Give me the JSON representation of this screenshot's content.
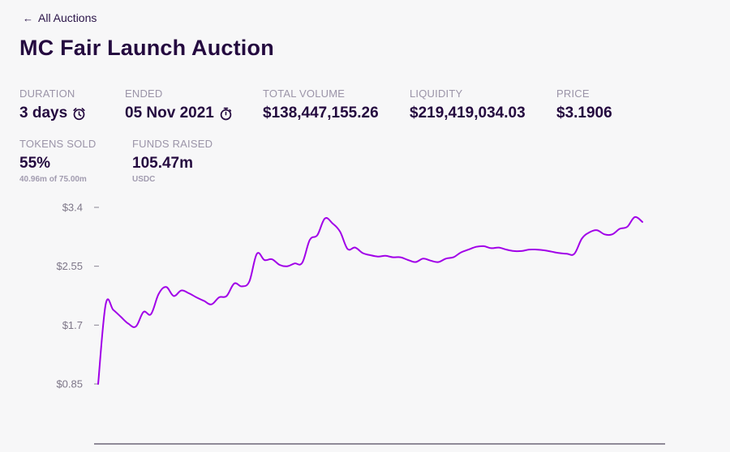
{
  "nav": {
    "back_label": "All Auctions",
    "back_icon": "arrow-left-icon"
  },
  "header": {
    "title": "MC Fair Launch Auction"
  },
  "stats": {
    "duration": {
      "label": "DURATION",
      "value": "3 days",
      "icon": "alarm-clock-icon"
    },
    "ended": {
      "label": "ENDED",
      "value": "05 Nov 2021",
      "icon": "stopwatch-icon"
    },
    "total_volume": {
      "label": "TOTAL VOLUME",
      "value": "$138,447,155.26"
    },
    "liquidity": {
      "label": "LIQUIDITY",
      "value": "$219,419,034.03"
    },
    "price": {
      "label": "PRICE",
      "value": "$3.1906"
    },
    "tokens_sold": {
      "label": "TOKENS SOLD",
      "value": "55%",
      "sub": "40.96m of 75.00m"
    },
    "funds_raised": {
      "label": "FUNDS RAISED",
      "value": "105.47m",
      "sub": "USDC"
    }
  },
  "chart_data": {
    "type": "line",
    "title": "",
    "xlabel": "",
    "ylabel": "",
    "ylim": [
      0.85,
      3.4
    ],
    "yticks": [
      0.85,
      1.7,
      2.55,
      3.4
    ],
    "ytick_labels": [
      "$0.85",
      "$1.7",
      "$2.55",
      "$3.4"
    ],
    "grid": false,
    "color": "#a100e8",
    "series": [
      {
        "values": [
          0.85,
          2.0,
          1.92,
          1.82,
          1.72,
          1.68,
          1.89,
          1.86,
          2.15,
          2.25,
          2.12,
          2.2,
          2.16,
          2.1,
          2.05,
          2.0,
          2.1,
          2.12,
          2.3,
          2.26,
          2.33,
          2.73,
          2.64,
          2.65,
          2.57,
          2.55,
          2.59,
          2.6,
          2.93,
          3.0,
          3.24,
          3.17,
          3.05,
          2.8,
          2.82,
          2.74,
          2.71,
          2.69,
          2.7,
          2.68,
          2.68,
          2.64,
          2.61,
          2.66,
          2.63,
          2.61,
          2.66,
          2.68,
          2.75,
          2.79,
          2.83,
          2.84,
          2.81,
          2.82,
          2.79,
          2.77,
          2.77,
          2.79,
          2.79,
          2.78,
          2.76,
          2.74,
          2.73,
          2.73,
          2.95,
          3.04,
          3.07,
          3.01,
          3.01,
          3.09,
          3.12,
          3.26,
          3.19
        ]
      }
    ]
  }
}
